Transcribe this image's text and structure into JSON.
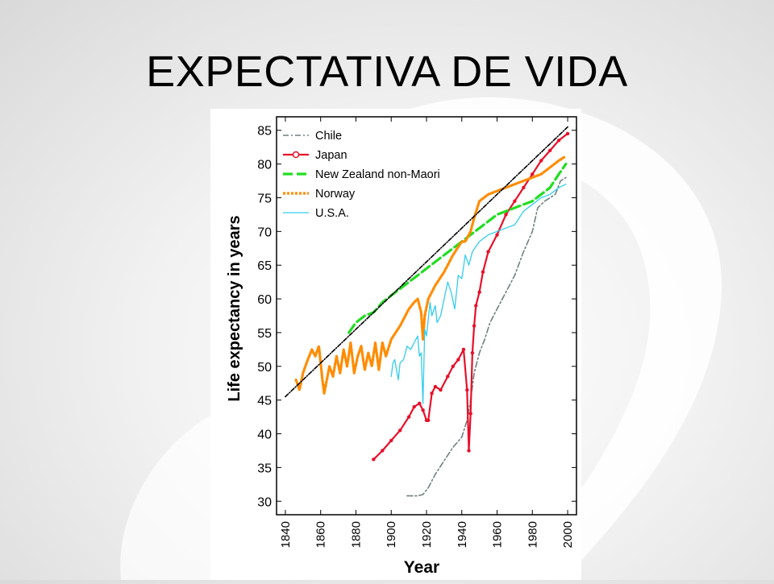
{
  "slide": {
    "title": "EXPECTATIVA DE VIDA"
  },
  "chart_data": {
    "type": "line",
    "title": "",
    "xlabel": "Year",
    "ylabel": "Life expectancy in years",
    "xlim": [
      1835,
      2005
    ],
    "ylim": [
      28,
      87
    ],
    "x_ticks": [
      1840,
      1860,
      1880,
      1900,
      1920,
      1940,
      1960,
      1980,
      2000
    ],
    "y_ticks": [
      30,
      35,
      40,
      45,
      50,
      55,
      60,
      65,
      70,
      75,
      80,
      85
    ],
    "grid": false,
    "legend_position": "top-left",
    "series": [
      {
        "name": "Chile",
        "color": "#708080",
        "style": "dashdot",
        "x": [
          1909,
          1915,
          1918,
          1921,
          1925,
          1930,
          1935,
          1940,
          1943,
          1945,
          1947,
          1950,
          1953,
          1956,
          1960,
          1965,
          1970,
          1975,
          1980,
          1983,
          1987,
          1990,
          1993,
          1996,
          1999
        ],
        "y": [
          30.8,
          30.8,
          31.0,
          32.0,
          34.0,
          36.0,
          38.0,
          39.5,
          42.0,
          45.0,
          49.0,
          52.0,
          54.0,
          56.5,
          58.5,
          61.0,
          63.5,
          67.0,
          70.0,
          73.5,
          74.5,
          75.0,
          75.5,
          77.5,
          78.0
        ]
      },
      {
        "name": "Japan",
        "color": "#e8102a",
        "style": "solid-circle",
        "x": [
          1890,
          1895,
          1900,
          1905,
          1910,
          1913,
          1916,
          1918,
          1920,
          1921,
          1923,
          1925,
          1928,
          1932,
          1935,
          1938,
          1941,
          1943,
          1944,
          1945,
          1946,
          1947,
          1948,
          1950,
          1952,
          1955,
          1960,
          1965,
          1970,
          1975,
          1980,
          1985,
          1990,
          1995,
          2000
        ],
        "y": [
          36.2,
          37.5,
          39.0,
          40.5,
          42.5,
          44.0,
          44.5,
          43.5,
          42.0,
          42.0,
          46.0,
          47.0,
          46.5,
          48.5,
          50.0,
          51.0,
          52.5,
          46.5,
          37.5,
          43.0,
          52.0,
          56.0,
          59.0,
          61.0,
          64.0,
          67.0,
          69.5,
          72.5,
          74.5,
          76.5,
          78.5,
          80.5,
          82.0,
          83.5,
          84.5
        ]
      },
      {
        "name": "New Zealand non-Maori",
        "color": "#22dd22",
        "style": "dashed",
        "x": [
          1876,
          1880,
          1885,
          1890,
          1895,
          1900,
          1905,
          1910,
          1915,
          1920,
          1925,
          1930,
          1935,
          1940,
          1945,
          1950,
          1955,
          1960,
          1965,
          1970,
          1975,
          1980,
          1985,
          1990,
          1995,
          1999
        ],
        "y": [
          55.0,
          56.5,
          57.5,
          58.0,
          59.5,
          60.5,
          61.5,
          62.5,
          63.5,
          64.5,
          65.5,
          66.5,
          67.5,
          68.5,
          69.5,
          70.5,
          71.5,
          72.5,
          73.0,
          73.5,
          74.0,
          74.5,
          75.5,
          76.5,
          78.5,
          80.0
        ]
      },
      {
        "name": "Norway",
        "color": "#ff8c00",
        "style": "dotted",
        "x": [
          1846,
          1848,
          1850,
          1852,
          1855,
          1857,
          1859,
          1861,
          1862,
          1865,
          1867,
          1869,
          1871,
          1873,
          1875,
          1877,
          1879,
          1881,
          1883,
          1885,
          1887,
          1889,
          1891,
          1893,
          1895,
          1897,
          1900,
          1905,
          1910,
          1913,
          1915,
          1917,
          1918,
          1919,
          1921,
          1925,
          1930,
          1935,
          1940,
          1942,
          1945,
          1947,
          1950,
          1955,
          1960,
          1965,
          1970,
          1975,
          1980,
          1985,
          1990,
          1995,
          1998
        ],
        "y": [
          48.0,
          46.5,
          49.0,
          50.5,
          52.5,
          51.5,
          53.0,
          48.0,
          46.0,
          50.0,
          48.5,
          51.5,
          49.0,
          52.5,
          50.0,
          53.5,
          49.0,
          51.5,
          53.0,
          49.5,
          52.0,
          50.0,
          53.5,
          49.5,
          53.5,
          51.5,
          54.0,
          56.0,
          58.5,
          59.5,
          60.0,
          58.0,
          54.0,
          57.5,
          60.0,
          62.0,
          64.0,
          66.5,
          68.5,
          68.5,
          70.0,
          72.0,
          74.5,
          75.5,
          76.0,
          76.5,
          77.0,
          77.5,
          78.0,
          78.5,
          79.5,
          80.5,
          81.0
        ]
      },
      {
        "name": "U.S.A.",
        "color": "#33ccee",
        "style": "solid-thin",
        "x": [
          1900,
          1901,
          1902,
          1904,
          1905,
          1907,
          1909,
          1911,
          1913,
          1915,
          1916,
          1917,
          1918,
          1919,
          1920,
          1922,
          1923,
          1925,
          1926,
          1928,
          1930,
          1932,
          1934,
          1936,
          1938,
          1940,
          1942,
          1944,
          1946,
          1950,
          1955,
          1960,
          1965,
          1970,
          1975,
          1980,
          1985,
          1990,
          1995,
          1999
        ],
        "y": [
          48.5,
          50.5,
          51.0,
          48.0,
          50.5,
          51.0,
          53.0,
          52.5,
          53.5,
          54.5,
          51.5,
          52.0,
          44.5,
          55.5,
          54.5,
          59.5,
          57.5,
          59.0,
          56.5,
          57.5,
          60.0,
          62.5,
          61.0,
          58.5,
          63.5,
          63.0,
          66.5,
          65.0,
          67.0,
          68.5,
          69.5,
          70.0,
          70.5,
          71.0,
          73.0,
          74.0,
          75.0,
          75.5,
          76.5,
          77.0
        ]
      },
      {
        "name": "",
        "color": "#000000",
        "style": "dashdot-trend",
        "x": [
          1840,
          2000
        ],
        "y": [
          45.5,
          85.5
        ]
      }
    ]
  }
}
